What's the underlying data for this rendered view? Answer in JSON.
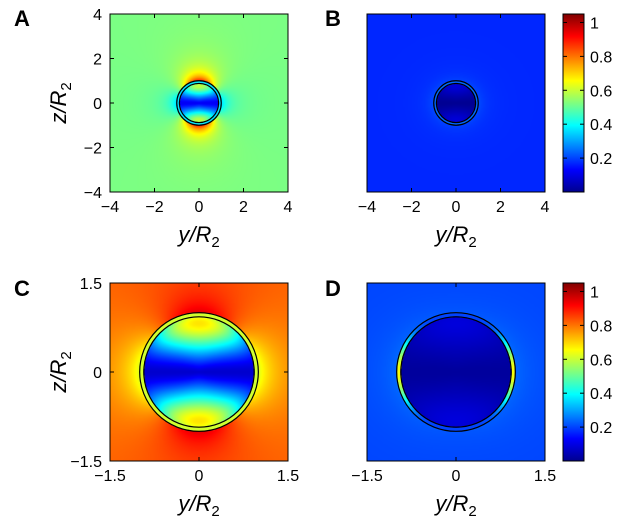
{
  "chart_data": [
    {
      "type": "heatmap",
      "panel_label": "A",
      "xlabel_main": "y/R",
      "xlabel_sub": "2",
      "ylabel_main": "z/R",
      "ylabel_sub": "2",
      "xlim": [
        -4,
        4
      ],
      "ylim": [
        -4,
        4
      ],
      "x_ticks": [
        -4,
        -2,
        0,
        2,
        4
      ],
      "y_ticks": [
        -4,
        -2,
        0,
        2,
        4
      ],
      "x_tick_labels": [
        "−4",
        "−2",
        "0",
        "2",
        "4"
      ],
      "y_tick_labels": [
        "−4",
        "−2",
        "0",
        "2",
        "4"
      ],
      "shell_outer_radius": 1.0,
      "shell_inner_radius": 0.88,
      "field_far": 0.52,
      "field_pole_peak": 0.9,
      "field_equator": 0.35,
      "field_interior_center": 0.12,
      "field_interior_pole": 0.78,
      "colorbar": false
    },
    {
      "type": "heatmap",
      "panel_label": "B",
      "xlabel_main": "y/R",
      "xlabel_sub": "2",
      "ylabel_main": "",
      "ylabel_sub": "",
      "xlim": [
        -4,
        4
      ],
      "ylim": [
        -4,
        4
      ],
      "x_ticks": [
        -4,
        -2,
        0,
        2,
        4
      ],
      "y_ticks": [],
      "x_tick_labels": [
        "−4",
        "−2",
        "0",
        "2",
        "4"
      ],
      "y_tick_labels": [],
      "shell_outer_radius": 1.0,
      "shell_inner_radius": 0.88,
      "field_far": 0.17,
      "field_pole_peak": 0.2,
      "field_equator": 0.21,
      "field_interior_center": 0.02,
      "field_interior_pole": 0.12,
      "colorbar": true
    },
    {
      "type": "heatmap",
      "panel_label": "C",
      "xlabel_main": "y/R",
      "xlabel_sub": "2",
      "ylabel_main": "z/R",
      "ylabel_sub": "2",
      "xlim": [
        -1.5,
        1.5
      ],
      "ylim": [
        -1.5,
        1.5
      ],
      "x_ticks": [
        -1.5,
        0,
        1.5
      ],
      "y_ticks": [
        -1.5,
        0,
        1.5
      ],
      "x_tick_labels": [
        "−1.5",
        "0",
        "1.5"
      ],
      "y_tick_labels": [
        "−1.5",
        "0",
        "1.5"
      ],
      "shell_outer_radius": 1.0,
      "shell_inner_radius": 0.93,
      "field_far": 0.82,
      "field_pole_peak": 0.95,
      "field_equator": 0.62,
      "field_interior_center": 0.08,
      "field_interior_pole": 0.92,
      "colorbar": false
    },
    {
      "type": "heatmap",
      "panel_label": "D",
      "xlabel_main": "y/R",
      "xlabel_sub": "2",
      "ylabel_main": "",
      "ylabel_sub": "",
      "xlim": [
        -1.5,
        1.5
      ],
      "ylim": [
        -1.5,
        1.5
      ],
      "x_ticks": [
        -1.5,
        0,
        1.5
      ],
      "y_ticks": [],
      "x_tick_labels": [
        "−1.5",
        "0",
        "1.5"
      ],
      "y_tick_labels": [],
      "shell_outer_radius": 1.0,
      "shell_inner_radius": 0.93,
      "field_far": 0.2,
      "field_pole_peak": 0.22,
      "field_equator": 0.24,
      "field_interior_center": 0.03,
      "field_interior_pole": 0.12,
      "shell_equator_peak": 0.65,
      "colorbar": true
    }
  ],
  "colorbar": {
    "colormap": "jet",
    "range": [
      0,
      1.05
    ],
    "ticks": [
      0.2,
      0.4,
      0.6,
      0.8,
      1
    ],
    "tick_labels": [
      "0.2",
      "0.4",
      "0.6",
      "0.8",
      "1"
    ]
  }
}
